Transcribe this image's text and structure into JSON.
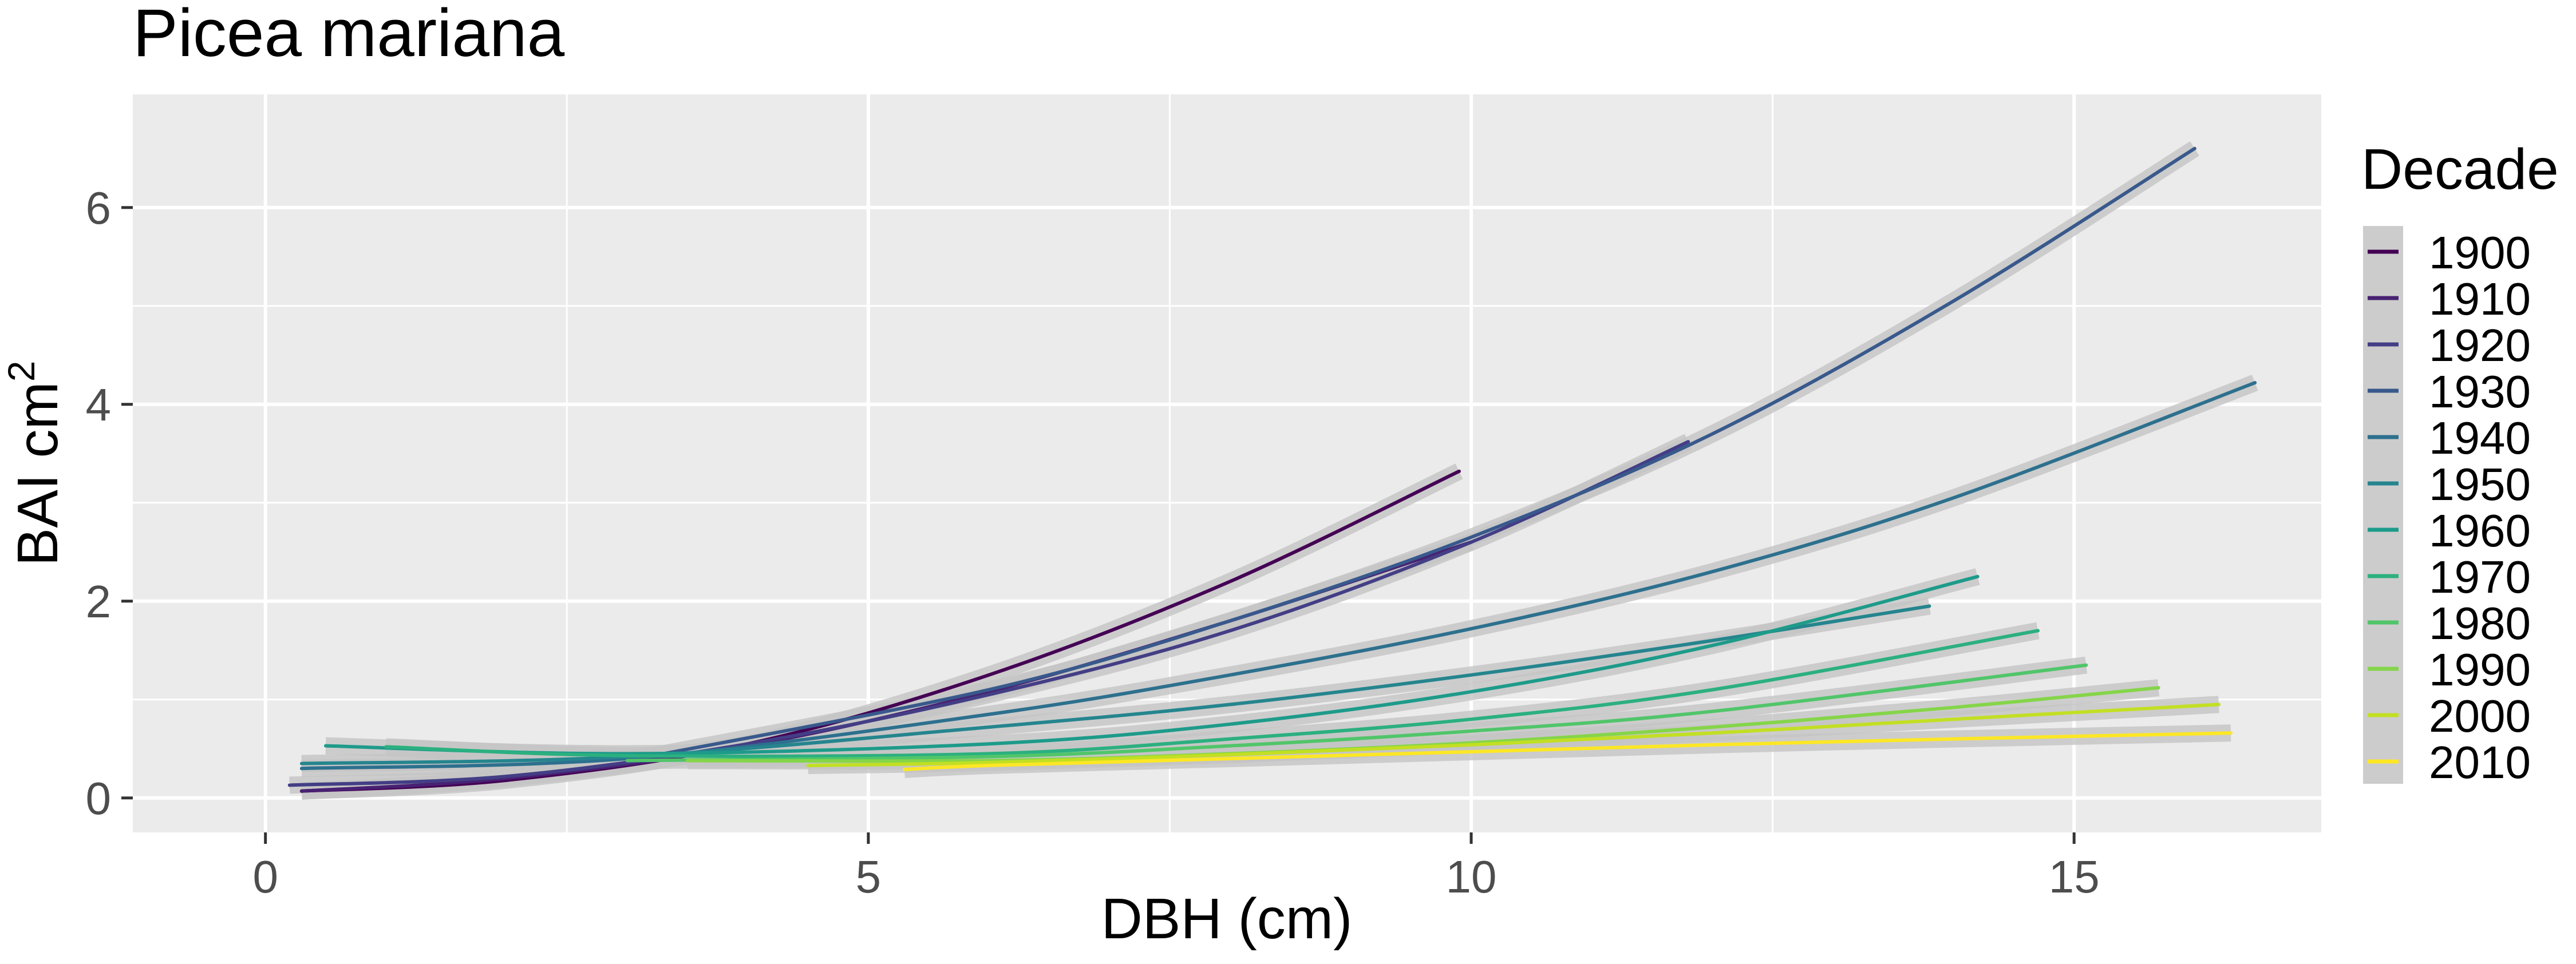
{
  "chart_data": {
    "type": "line",
    "title": "Picea mariana",
    "xlabel": "DBH (cm)",
    "ylabel_main": "BAI cm",
    "ylabel_sup": "2",
    "xlim": [
      -1.1,
      17.05
    ],
    "ylim": [
      -0.35,
      7.15
    ],
    "x_ticks": [
      0,
      5,
      10,
      15
    ],
    "x_tick_labels": [
      "0",
      "5",
      "10",
      "15"
    ],
    "y_ticks": [
      0,
      2,
      4,
      6
    ],
    "y_tick_labels": [
      "0",
      "2",
      "4",
      "6"
    ],
    "grid": true,
    "legend": {
      "title": "Decade",
      "position": "right"
    },
    "series": [
      {
        "name": "1900",
        "color": "#440154",
        "x": [
          0.3,
          2.0,
          4.0,
          6.0,
          8.0,
          9.9
        ],
        "y": [
          0.07,
          0.18,
          0.55,
          1.25,
          2.2,
          3.32
        ]
      },
      {
        "name": "1910",
        "color": "#482173",
        "x": [
          0.3,
          2.0,
          4.0,
          6.0,
          8.0,
          10.0
        ],
        "y": [
          0.07,
          0.2,
          0.53,
          1.08,
          1.8,
          2.6
        ]
      },
      {
        "name": "1920",
        "color": "#433E85",
        "x": [
          0.2,
          2.0,
          4.0,
          6.0,
          8.0,
          10.0,
          11.8
        ],
        "y": [
          0.13,
          0.22,
          0.55,
          1.05,
          1.7,
          2.6,
          3.62
        ]
      },
      {
        "name": "1930",
        "color": "#38598C",
        "x": [
          3.0,
          6.0,
          8.0,
          10.0,
          12.0,
          14.0,
          16.0
        ],
        "y": [
          0.38,
          1.1,
          1.8,
          2.65,
          3.7,
          5.05,
          6.6
        ]
      },
      {
        "name": "1940",
        "color": "#2D708E",
        "x": [
          0.3,
          3.0,
          6.0,
          8.0,
          10.0,
          12.0,
          14.0,
          16.5
        ],
        "y": [
          0.3,
          0.4,
          0.85,
          1.25,
          1.72,
          2.3,
          3.05,
          4.22
        ]
      },
      {
        "name": "1950",
        "color": "#25858E",
        "x": [
          0.3,
          3.0,
          6.0,
          8.0,
          10.0,
          12.0,
          13.8
        ],
        "y": [
          0.35,
          0.42,
          0.72,
          0.95,
          1.25,
          1.6,
          1.95
        ]
      },
      {
        "name": "1960",
        "color": "#1E9B8A",
        "x": [
          0.5,
          3.0,
          6.0,
          8.0,
          10.0,
          12.0,
          14.2
        ],
        "y": [
          0.53,
          0.45,
          0.55,
          0.75,
          1.08,
          1.55,
          2.25
        ]
      },
      {
        "name": "1970",
        "color": "#2BB07F",
        "x": [
          1.0,
          3.0,
          6.0,
          8.0,
          10.0,
          12.0,
          14.7
        ],
        "y": [
          0.52,
          0.43,
          0.45,
          0.6,
          0.8,
          1.1,
          1.7
        ]
      },
      {
        "name": "1980",
        "color": "#51C56A",
        "x": [
          3.0,
          6.0,
          8.0,
          10.0,
          12.0,
          15.1
        ],
        "y": [
          0.38,
          0.42,
          0.53,
          0.68,
          0.88,
          1.35
        ]
      },
      {
        "name": "1990",
        "color": "#85D54A",
        "x": [
          3.5,
          6.0,
          8.0,
          10.0,
          12.0,
          14.0,
          15.7
        ],
        "y": [
          0.38,
          0.38,
          0.45,
          0.56,
          0.72,
          0.92,
          1.12
        ]
      },
      {
        "name": "2000",
        "color": "#C2DF23",
        "x": [
          4.5,
          6.0,
          8.0,
          10.0,
          12.0,
          14.0,
          16.2
        ],
        "y": [
          0.33,
          0.36,
          0.44,
          0.54,
          0.66,
          0.8,
          0.95
        ]
      },
      {
        "name": "2010",
        "color": "#FDE725",
        "x": [
          5.3,
          6.0,
          8.0,
          10.0,
          12.0,
          14.0,
          16.3
        ],
        "y": [
          0.29,
          0.33,
          0.4,
          0.47,
          0.54,
          0.6,
          0.66
        ]
      }
    ]
  }
}
